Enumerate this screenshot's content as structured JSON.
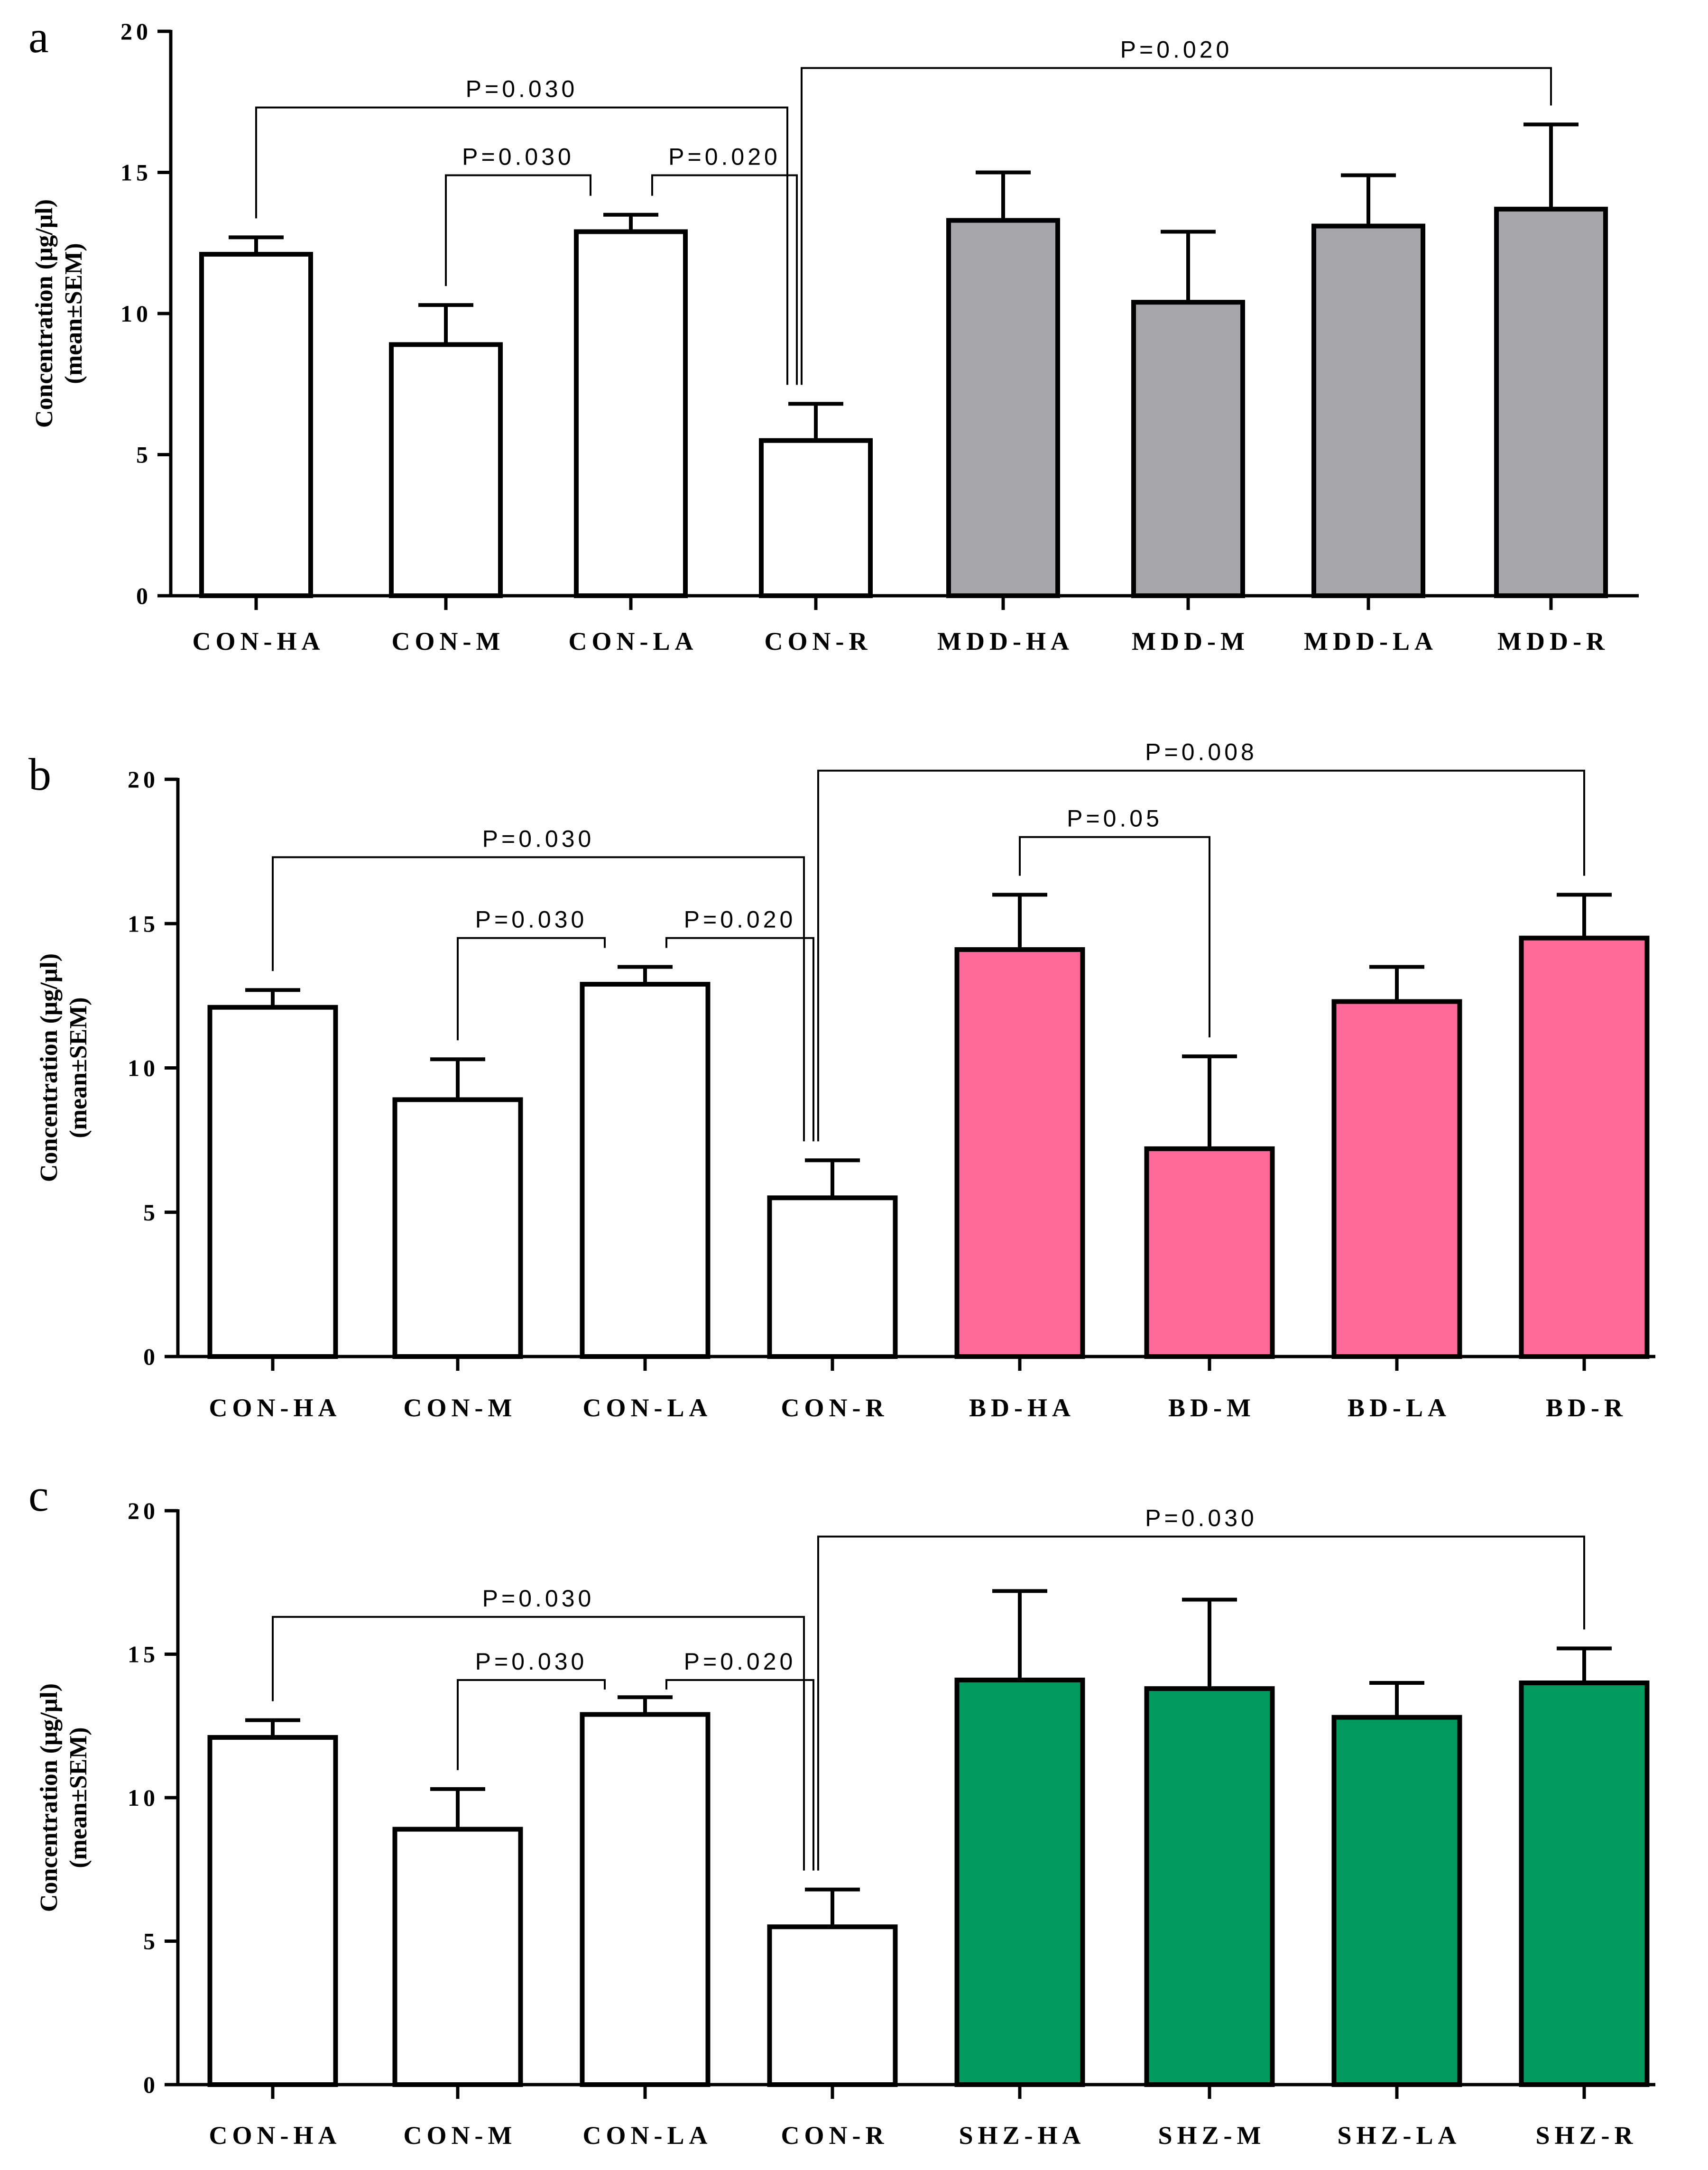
{
  "figure": {
    "panels": [
      "a",
      "b",
      "c"
    ]
  },
  "chart_data": [
    {
      "type": "bar",
      "panel": "a",
      "ylabel": "Concentration (μg/μl)",
      "ylabel2": "(mean±SEM)",
      "ylim": [
        0,
        20
      ],
      "yticks": [
        "0",
        "5",
        "10",
        "15",
        "20"
      ],
      "categories": [
        "CON-HA",
        "CON-M",
        "CON-LA",
        "CON-R",
        "MDD-HA",
        "MDD-M",
        "MDD-LA",
        "MDD-R"
      ],
      "values": [
        12.1,
        8.9,
        12.9,
        5.5,
        13.3,
        10.4,
        13.1,
        13.7
      ],
      "errors": [
        0.6,
        1.4,
        0.6,
        1.3,
        1.7,
        2.5,
        1.8,
        3.0
      ],
      "colors": [
        "#ffffff",
        "#ffffff",
        "#ffffff",
        "#ffffff",
        "#a6a6aa",
        "#a6a6aa",
        "#a6a6aa",
        "#a6a6aa"
      ],
      "annotations": [
        {
          "text": "P=0.030",
          "from": 0,
          "to": 3,
          "level": 17.3
        },
        {
          "text": "P=0.030",
          "from": 1,
          "to": 2,
          "level": 14.9
        },
        {
          "text": "P=0.020",
          "from": 2,
          "to": 3,
          "level": 14.9
        },
        {
          "text": "P=0.020",
          "from": 3,
          "to": 7,
          "level": 18.7
        }
      ]
    },
    {
      "type": "bar",
      "panel": "b",
      "ylabel": "Concentration (μg/μl)",
      "ylabel2": "(mean±SEM)",
      "ylim": [
        0,
        20
      ],
      "yticks": [
        "0",
        "5",
        "10",
        "15",
        "20"
      ],
      "categories": [
        "CON-HA",
        "CON-M",
        "CON-LA",
        "CON-R",
        "BD-HA",
        "BD-M",
        "BD-LA",
        "BD-R"
      ],
      "values": [
        12.1,
        8.9,
        12.9,
        5.5,
        14.1,
        7.2,
        12.3,
        14.5
      ],
      "errors": [
        0.6,
        1.4,
        0.6,
        1.3,
        1.9,
        3.2,
        1.2,
        1.5
      ],
      "colors": [
        "#ffffff",
        "#ffffff",
        "#ffffff",
        "#ffffff",
        "#ff6a9b",
        "#ff6a9b",
        "#ff6a9b",
        "#ff6a9b"
      ],
      "annotations": [
        {
          "text": "P=0.030",
          "from": 0,
          "to": 3,
          "level": 17.3
        },
        {
          "text": "P=0.030",
          "from": 1,
          "to": 2,
          "level": 14.5
        },
        {
          "text": "P=0.020",
          "from": 2,
          "to": 3,
          "level": 14.5
        },
        {
          "text": "P=0.008",
          "from": 3,
          "to": 7,
          "level": 20.3
        },
        {
          "text": "P=0.05",
          "from": 4,
          "to": 5,
          "level": 18.0
        }
      ]
    },
    {
      "type": "bar",
      "panel": "c",
      "ylabel": "Concentration (μg/μl)",
      "ylabel2": "(mean±SEM)",
      "ylim": [
        0,
        20
      ],
      "yticks": [
        "0",
        "5",
        "10",
        "15",
        "20"
      ],
      "categories": [
        "CON-HA",
        "CON-M",
        "CON-LA",
        "CON-R",
        "SHZ-HA",
        "SHZ-M",
        "SHZ-LA",
        "SHZ-R"
      ],
      "values": [
        12.1,
        8.9,
        12.9,
        5.5,
        14.1,
        13.8,
        12.8,
        14.0
      ],
      "errors": [
        0.6,
        1.4,
        0.6,
        1.3,
        3.1,
        3.1,
        1.2,
        1.2
      ],
      "colors": [
        "#ffffff",
        "#ffffff",
        "#ffffff",
        "#ffffff",
        "#00995e",
        "#00995e",
        "#00995e",
        "#00995e"
      ],
      "annotations": [
        {
          "text": "P=0.030",
          "from": 0,
          "to": 3,
          "level": 16.3
        },
        {
          "text": "P=0.030",
          "from": 1,
          "to": 2,
          "level": 14.1
        },
        {
          "text": "P=0.020",
          "from": 2,
          "to": 3,
          "level": 14.1
        },
        {
          "text": "P=0.030",
          "from": 3,
          "to": 7,
          "level": 19.1
        }
      ]
    }
  ]
}
